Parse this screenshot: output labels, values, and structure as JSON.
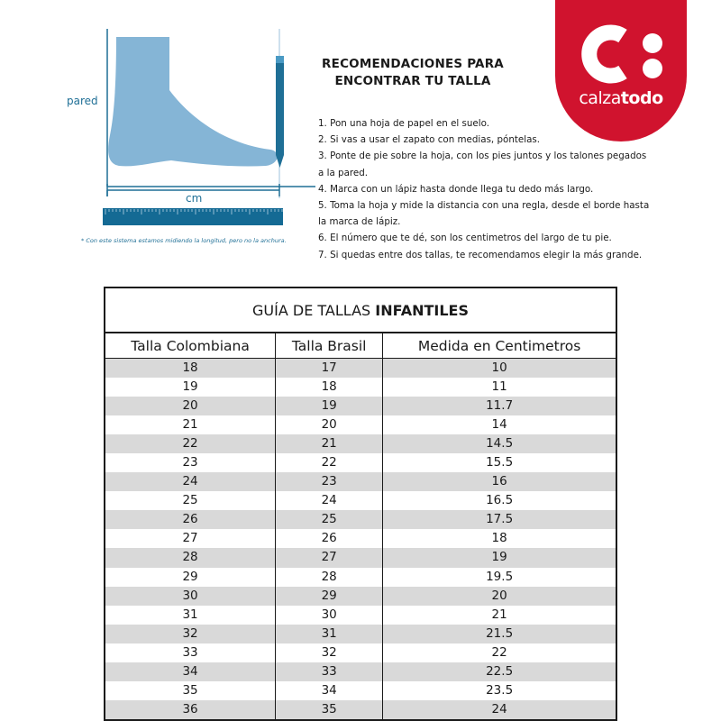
{
  "illustration": {
    "wall_label": "pared",
    "measure_label": "cm",
    "footnote": "* Con este sistema estamos midiendo la longitud, pero no la anchura.",
    "colors": {
      "foot": "#85b5d6",
      "lines": "#1f6f96",
      "ruler": "#146a94"
    }
  },
  "instructions": {
    "heading_line1": "RECOMENDACIONES PARA",
    "heading_line2": "ENCONTRAR TU TALLA",
    "steps": [
      "1. Pon una hoja de papel en el suelo.",
      "2. Si vas a usar el zapato con medias, póntelas.",
      "3. Ponte de pie sobre la hoja, con los pies juntos y los talones pegados",
      "a la pared.",
      "4. Marca con un lápiz hasta donde llega tu dedo más largo.",
      "5. Toma la hoja y mide la distancia con una regla, desde el borde hasta",
      "la marca de lápiz.",
      "6. El número que te dé, son los centimetros del largo de tu pie.",
      "7. Si quedas entre dos tallas, te recomendamos elegir la más grande."
    ]
  },
  "logo": {
    "text_light": "calza",
    "text_bold": "todo",
    "color": "#d0132e"
  },
  "table": {
    "title_light": "GUÍA DE TALLAS ",
    "title_bold": "INFANTILES",
    "headers": [
      "Talla Colombiana",
      "Talla Brasil",
      "Medida en Centimetros"
    ],
    "rows": [
      [
        "18",
        "17",
        "10"
      ],
      [
        "19",
        "18",
        "11"
      ],
      [
        "20",
        "19",
        "11.7"
      ],
      [
        "21",
        "20",
        "14"
      ],
      [
        "22",
        "21",
        "14.5"
      ],
      [
        "23",
        "22",
        "15.5"
      ],
      [
        "24",
        "23",
        "16"
      ],
      [
        "25",
        "24",
        "16.5"
      ],
      [
        "26",
        "25",
        "17.5"
      ],
      [
        "27",
        "26",
        "18"
      ],
      [
        "28",
        "27",
        "19"
      ],
      [
        "29",
        "28",
        "19.5"
      ],
      [
        "30",
        "29",
        "20"
      ],
      [
        "31",
        "30",
        "21"
      ],
      [
        "32",
        "31",
        "21.5"
      ],
      [
        "33",
        "32",
        "22"
      ],
      [
        "34",
        "33",
        "22.5"
      ],
      [
        "35",
        "34",
        "23.5"
      ],
      [
        "36",
        "35",
        "24"
      ]
    ]
  }
}
